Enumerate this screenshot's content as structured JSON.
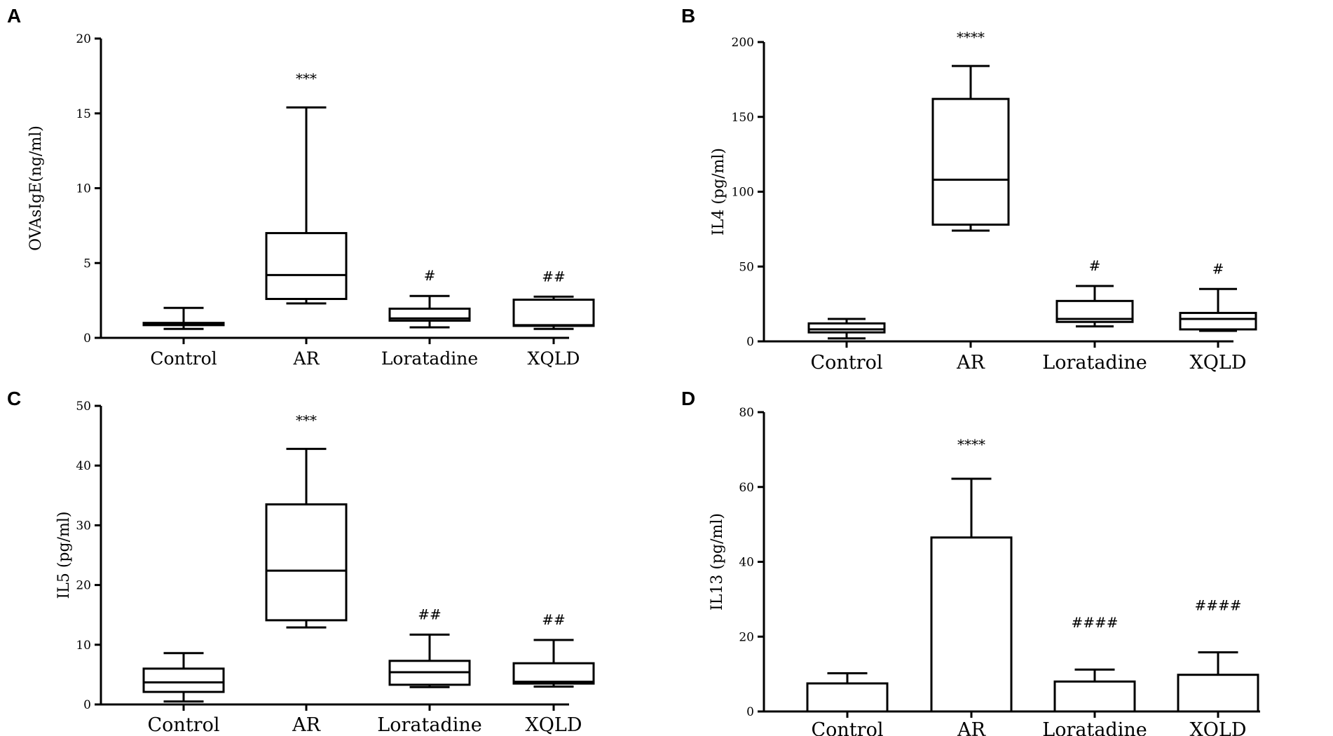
{
  "chart_data": [
    {
      "panel": "A",
      "type": "box",
      "ylabel": "OVAsIgE(ng/ml)",
      "categories": [
        "Control",
        "AR",
        "Loratadine",
        "XQLD"
      ],
      "ylim": [
        0,
        20
      ],
      "yticks": [
        0,
        5,
        10,
        15,
        20
      ],
      "ytick_labels": [
        "0",
        "5",
        "10",
        "15",
        "20"
      ],
      "boxes": [
        {
          "min": 0.6,
          "q1": 0.85,
          "median": 0.95,
          "q3": 1.0,
          "max": 2.0
        },
        {
          "min": 2.3,
          "q1": 2.6,
          "median": 4.2,
          "q3": 7.0,
          "max": 15.4
        },
        {
          "min": 0.7,
          "q1": 1.15,
          "median": 1.3,
          "q3": 1.95,
          "max": 2.8
        },
        {
          "min": 0.6,
          "q1": 0.8,
          "median": 0.85,
          "q3": 2.55,
          "max": 2.75
        }
      ],
      "annotations": [
        "",
        "***",
        "#",
        "##"
      ]
    },
    {
      "panel": "B",
      "type": "box",
      "ylabel": "IL4 (pg/ml)",
      "categories": [
        "Control",
        "AR",
        "Loratadine",
        "XQLD"
      ],
      "ylim": [
        0,
        200
      ],
      "yticks": [
        0,
        50,
        100,
        150,
        200
      ],
      "ytick_labels": [
        "0",
        "50",
        "100",
        "150",
        "200"
      ],
      "boxes": [
        {
          "min": 2,
          "q1": 6,
          "median": 8,
          "q3": 12,
          "max": 15
        },
        {
          "min": 74,
          "q1": 78,
          "median": 108,
          "q3": 162,
          "max": 184
        },
        {
          "min": 10,
          "q1": 13,
          "median": 15,
          "q3": 27,
          "max": 37
        },
        {
          "min": 7,
          "q1": 8,
          "median": 15,
          "q3": 19,
          "max": 35
        }
      ],
      "annotations": [
        "",
        "****",
        "#",
        "#"
      ]
    },
    {
      "panel": "C",
      "type": "box",
      "ylabel": "IL5 (pg/ml)",
      "categories": [
        "Control",
        "AR",
        "Loratadine",
        "XQLD"
      ],
      "ylim": [
        0,
        50
      ],
      "yticks": [
        0,
        10,
        20,
        30,
        40,
        50
      ],
      "ytick_labels": [
        "0",
        "10",
        "20",
        "30",
        "40",
        "50"
      ],
      "boxes": [
        {
          "min": 0.5,
          "q1": 2.1,
          "median": 3.7,
          "q3": 6.0,
          "max": 8.6
        },
        {
          "min": 12.9,
          "q1": 14.1,
          "median": 22.4,
          "q3": 33.5,
          "max": 42.8
        },
        {
          "min": 2.9,
          "q1": 3.3,
          "median": 5.4,
          "q3": 7.3,
          "max": 11.7
        },
        {
          "min": 3.0,
          "q1": 3.5,
          "median": 3.8,
          "q3": 6.9,
          "max": 10.8
        }
      ],
      "annotations": [
        "",
        "***",
        "##",
        "##"
      ]
    },
    {
      "panel": "D",
      "type": "bar",
      "ylabel": "IL13 (pg/ml)",
      "categories": [
        "Control",
        "AR",
        "Loratadine",
        "XQLD"
      ],
      "ylim": [
        0,
        80
      ],
      "yticks": [
        0,
        20,
        40,
        60,
        80
      ],
      "ytick_labels": [
        "0",
        "20",
        "40",
        "60",
        "80"
      ],
      "values": [
        7.5,
        46.5,
        8.0,
        9.8
      ],
      "errors": [
        2.7,
        15.7,
        3.2,
        6.0
      ],
      "annotations": [
        "",
        "****",
        "####",
        "####"
      ]
    }
  ]
}
